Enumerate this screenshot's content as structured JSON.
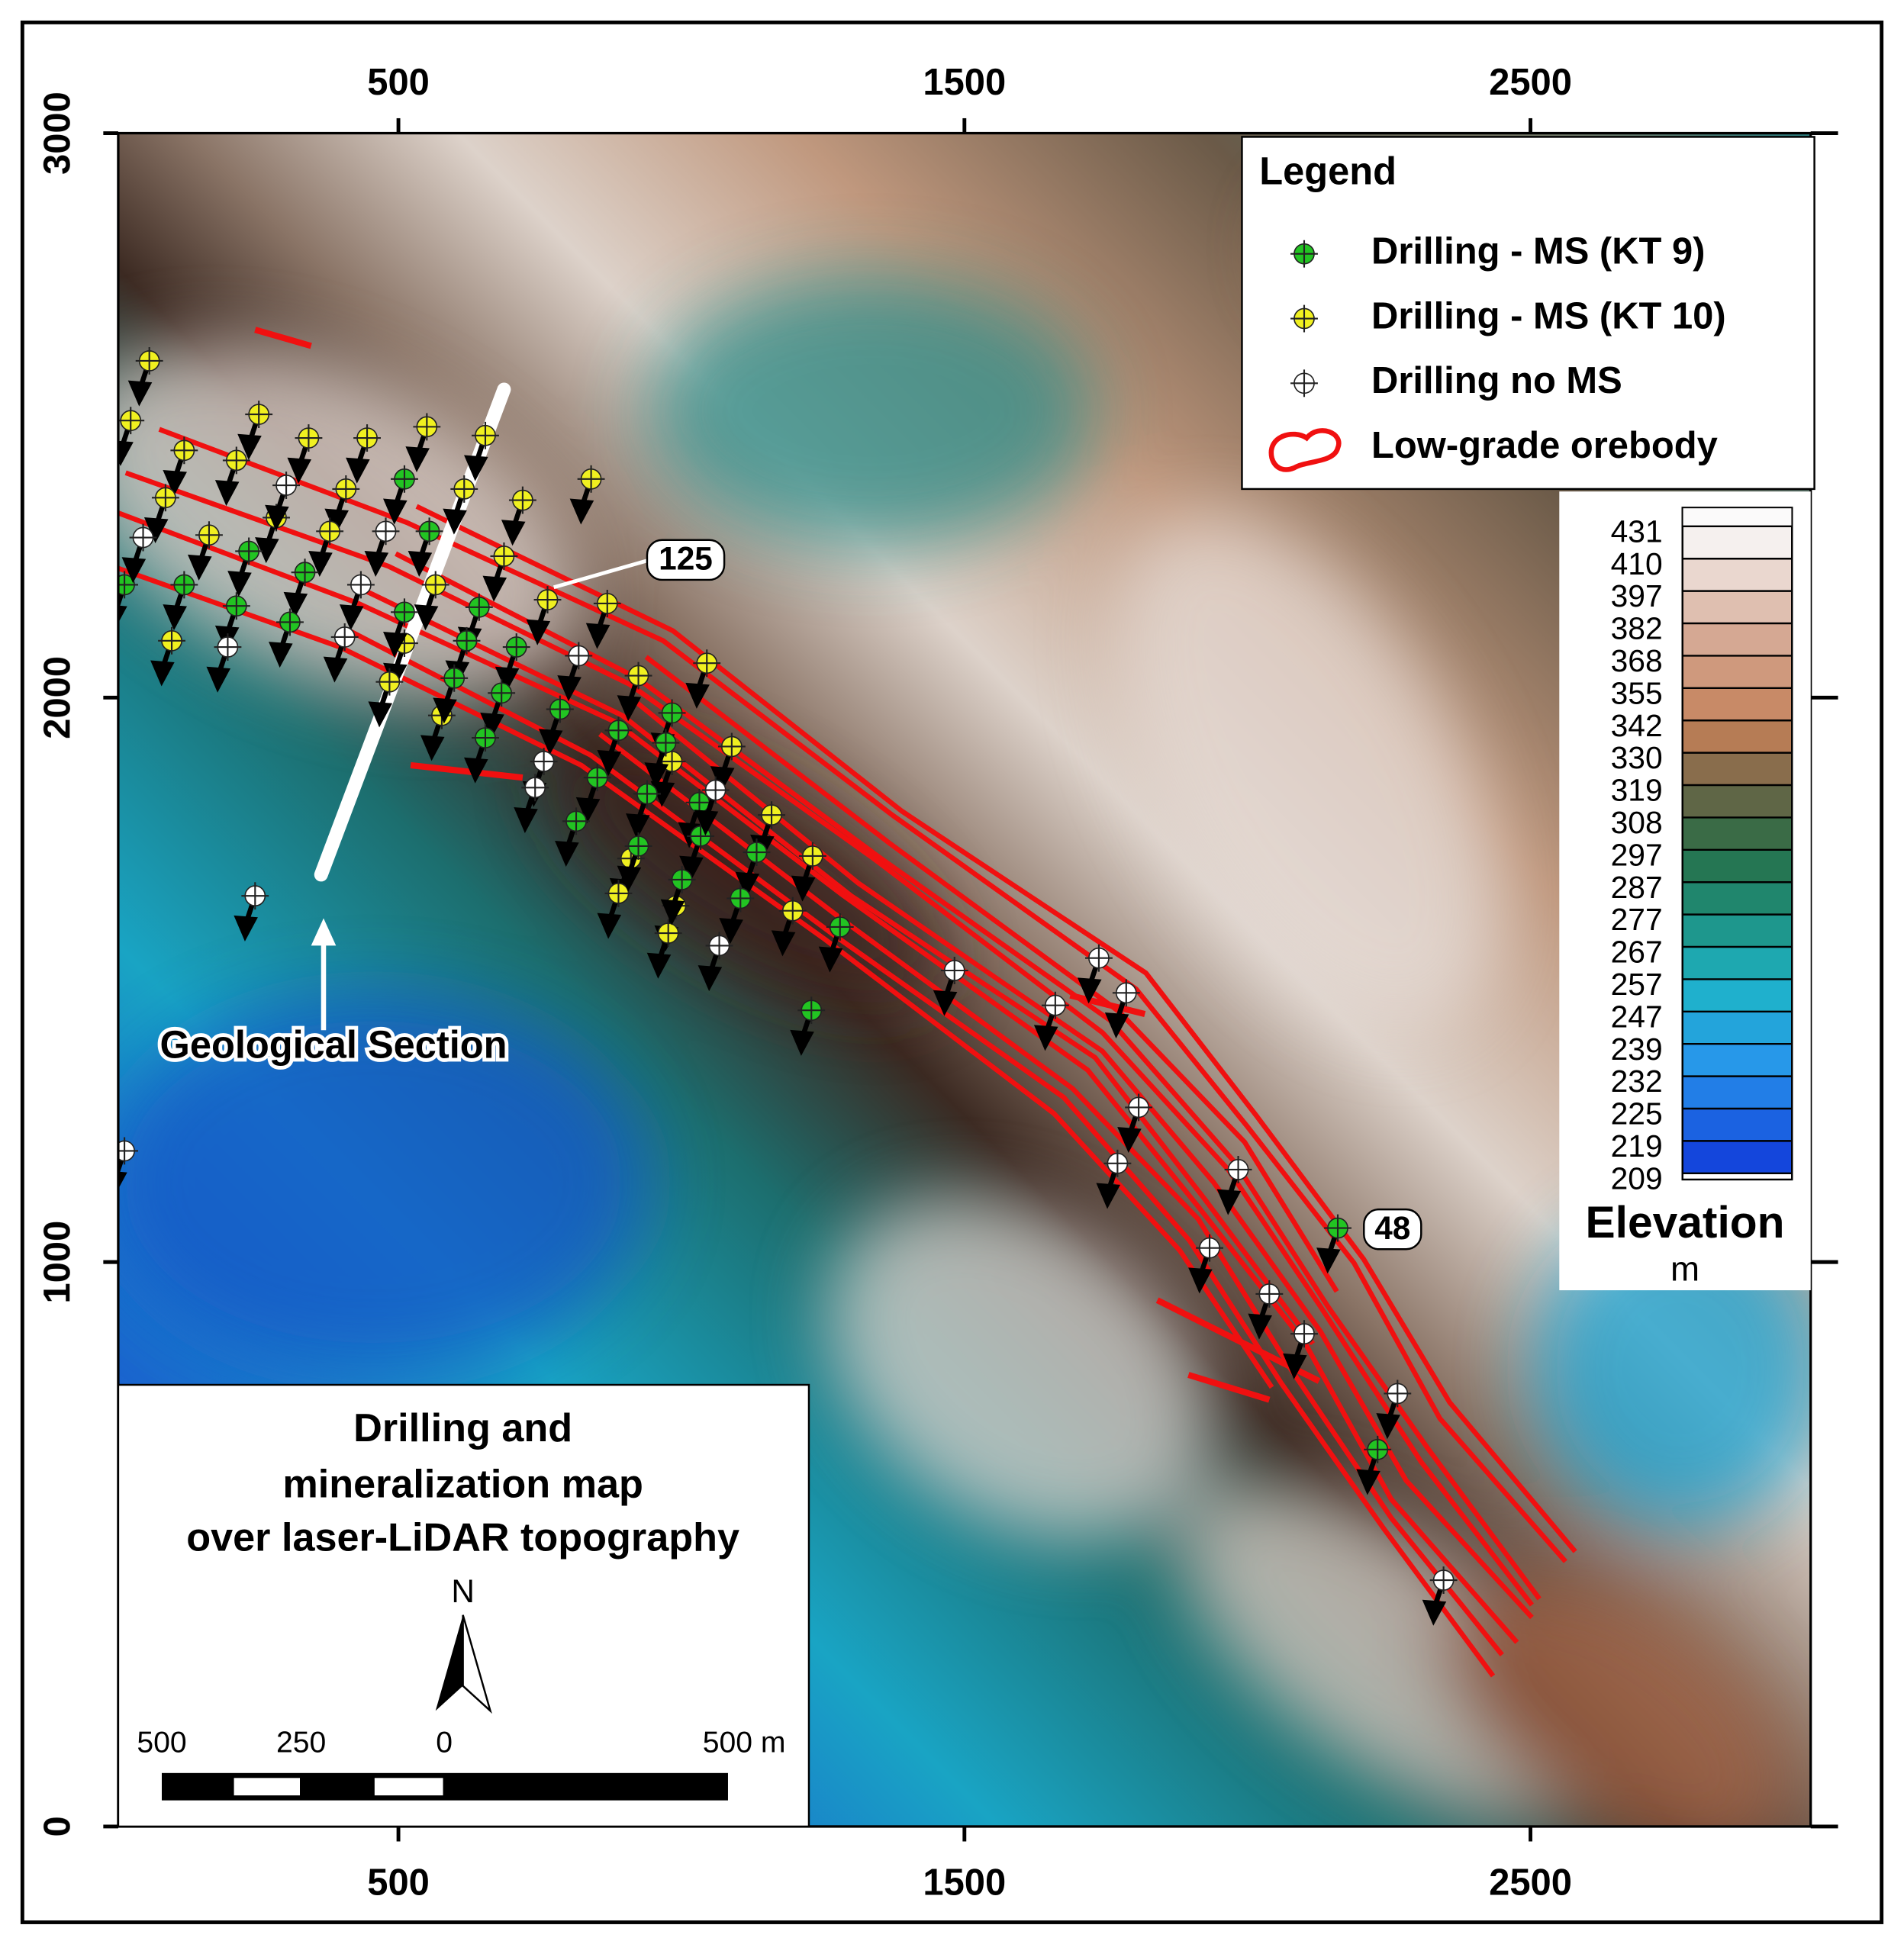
{
  "map": {
    "xlim": [
      5,
      2995
    ],
    "ylim": [
      0,
      3000
    ],
    "xticks": [
      500,
      1500,
      2500
    ],
    "yticks": [
      0,
      1000,
      2000,
      3000
    ]
  },
  "legend": {
    "title": "Legend",
    "items": [
      "Drilling - MS (KT 9)",
      "Drilling - MS (KT 10)",
      "Drilling no MS",
      "Low-grade orebody"
    ]
  },
  "colorbar": {
    "ticks": [
      431,
      410,
      397,
      382,
      368,
      355,
      342,
      330,
      319,
      308,
      297,
      287,
      277,
      267,
      257,
      247,
      239,
      232,
      225,
      219,
      209
    ],
    "title": "Elevation",
    "unit": "m"
  },
  "annotations": {
    "hole_125": "125",
    "hole_48": "48",
    "section": "Geological Section"
  },
  "title_box": {
    "lines": [
      "Drilling and",
      "mineralization map",
      "over laser-LiDAR topography"
    ],
    "north": "N",
    "scale_labels": [
      "500",
      "250",
      "0",
      "500 m"
    ]
  }
}
